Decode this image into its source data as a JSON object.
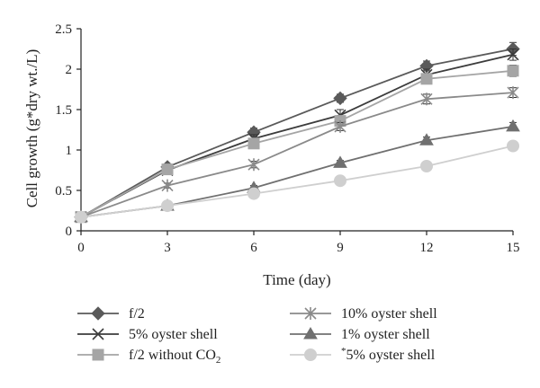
{
  "chart_data": {
    "type": "line",
    "xlabel": "Time (day)",
    "ylabel": "Cell growth (g*dry wt./L)",
    "xlim": [
      0,
      15
    ],
    "ylim": [
      0,
      2.5
    ],
    "x_ticks": [
      "0",
      "3",
      "6",
      "9",
      "12",
      "15"
    ],
    "y_ticks": [
      "0",
      "0.5",
      "1",
      "1.5",
      "2",
      "2.5"
    ],
    "x": [
      0,
      3,
      6,
      9,
      12,
      15
    ],
    "grid": false,
    "legend_position": "bottom",
    "series": [
      {
        "name": "f/2",
        "marker": "diamond",
        "color": "#5a5a5a",
        "values": [
          0.17,
          0.79,
          1.22,
          1.64,
          2.04,
          2.25
        ],
        "errors": [
          0.02,
          0.03,
          0.05,
          0.05,
          0.06,
          0.08
        ]
      },
      {
        "name": "5% oyster shell",
        "marker": "x",
        "color": "#3c3c3c",
        "values": [
          0.17,
          0.75,
          1.14,
          1.43,
          1.93,
          2.18
        ],
        "errors": [
          0.02,
          0.03,
          0.05,
          0.07,
          0.07,
          0.07
        ]
      },
      {
        "name": "f/2 without CO",
        "name_sub": "2",
        "marker": "square",
        "color": "#a5a5a5",
        "values": [
          0.17,
          0.76,
          1.08,
          1.36,
          1.88,
          1.98
        ],
        "errors": [
          0.02,
          0.03,
          0.04,
          0.05,
          0.06,
          0.07
        ]
      },
      {
        "name": "10% oyster shell",
        "marker": "asterisk",
        "color": "#8a8a8a",
        "values": [
          0.17,
          0.56,
          0.82,
          1.29,
          1.63,
          1.71
        ],
        "errors": [
          0.02,
          0.03,
          0.04,
          0.05,
          0.06,
          0.06
        ]
      },
      {
        "name": "1% oyster shell",
        "marker": "triangle",
        "color": "#707070",
        "values": [
          0.17,
          0.31,
          0.53,
          0.84,
          1.12,
          1.29
        ],
        "errors": [
          0.02,
          0.02,
          0.03,
          0.03,
          0.04,
          0.05
        ]
      },
      {
        "name": "5% oyster shell",
        "name_prefix": "*",
        "marker": "circle",
        "color": "#cfcfcf",
        "values": [
          0.17,
          0.31,
          0.46,
          0.62,
          0.8,
          1.05
        ],
        "errors": [
          0.02,
          0.02,
          0.02,
          0.02,
          0.03,
          0.03
        ]
      }
    ]
  }
}
